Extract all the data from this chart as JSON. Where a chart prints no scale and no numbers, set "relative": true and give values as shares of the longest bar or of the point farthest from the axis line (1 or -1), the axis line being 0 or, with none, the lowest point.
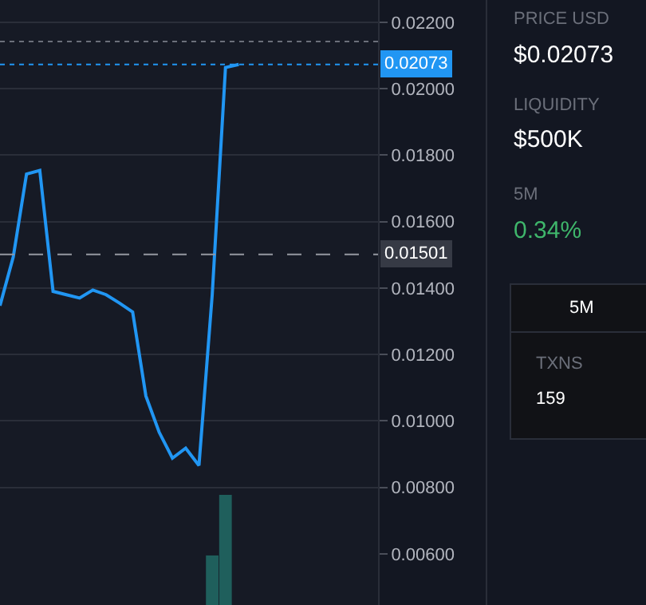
{
  "chart_data": [
    {
      "type": "line",
      "categories": [
        null,
        null,
        null,
        null,
        null,
        null,
        null,
        null,
        null,
        null,
        null,
        null,
        null,
        null,
        null,
        null,
        null,
        null,
        null,
        null,
        null,
        null,
        null,
        null,
        null,
        null,
        null,
        null,
        null
      ],
      "series": [
        {
          "color": "#2196f3",
          "values": [
            0.01347,
            0.01494,
            0.01743,
            0.01754,
            0.0139,
            0.0138,
            0.0137,
            0.01394,
            0.0138,
            0.01355,
            0.01328,
            0.01075,
            0.00966,
            0.00888,
            0.00918,
            0.00866,
            0.0138,
            0.02064,
            0.02073,
            null,
            null,
            null,
            null,
            null,
            null,
            null,
            null,
            null,
            null
          ]
        }
      ],
      "ylim": [
        0.00446,
        0.02267
      ],
      "yticks": [
        {
          "value": 0.006,
          "label": "0.00600"
        },
        {
          "value": 0.008,
          "label": "0.00800"
        },
        {
          "value": 0.01,
          "label": "0.01000"
        },
        {
          "value": 0.012,
          "label": "0.01200"
        },
        {
          "value": 0.014,
          "label": "0.01400"
        },
        {
          "value": 0.016,
          "label": "0.01600"
        },
        {
          "value": 0.018,
          "label": "0.01800"
        },
        {
          "value": 0.02,
          "label": "0.02000"
        },
        {
          "value": 0.022,
          "label": "0.02200"
        }
      ],
      "ref_lines": [
        {
          "axis": "y",
          "value": 0.02142,
          "label": null,
          "color": "#6b6f7a",
          "line_style": "dotted"
        },
        {
          "axis": "y",
          "value": 0.02073,
          "label": "0.02073",
          "color": "#2196f3",
          "line_style": "dotted"
        },
        {
          "axis": "y",
          "value": 0.01501,
          "label": "0.01501",
          "color": "#9598a1",
          "line_style": "dashed"
        }
      ],
      "grid": "y",
      "tick_labels": "y",
      "legend": false
    },
    {
      "type": "bar",
      "relative": true,
      "categories": [
        null,
        null,
        null,
        null,
        null,
        null,
        null,
        null,
        null,
        null,
        null,
        null,
        null,
        null,
        null,
        null,
        null,
        null,
        null,
        null,
        null,
        null,
        null,
        null,
        null,
        null,
        null,
        null,
        null
      ],
      "series": [
        {
          "color": "#1f5f5c",
          "values": [
            null,
            null,
            null,
            null,
            null,
            null,
            null,
            null,
            null,
            null,
            null,
            null,
            null,
            null,
            null,
            null,
            0.45,
            1,
            null,
            null,
            null,
            null,
            null,
            null,
            null,
            null,
            null,
            null,
            null
          ]
        }
      ]
    },
    {
      "type": "other",
      "annotations": [
        "PRICE USD",
        "$0.02073",
        "LIQUIDITY",
        "$500K",
        "5M",
        "0.34%",
        "5M",
        "TXNS",
        "159"
      ],
      "colors": [
        "#6b6f7a",
        "#ffffff",
        "#6b6f7a",
        "#ffffff",
        "#6b6f7a",
        "#3fb66b",
        "#ffffff",
        "#6b6f7a",
        "#ffffff"
      ]
    }
  ]
}
